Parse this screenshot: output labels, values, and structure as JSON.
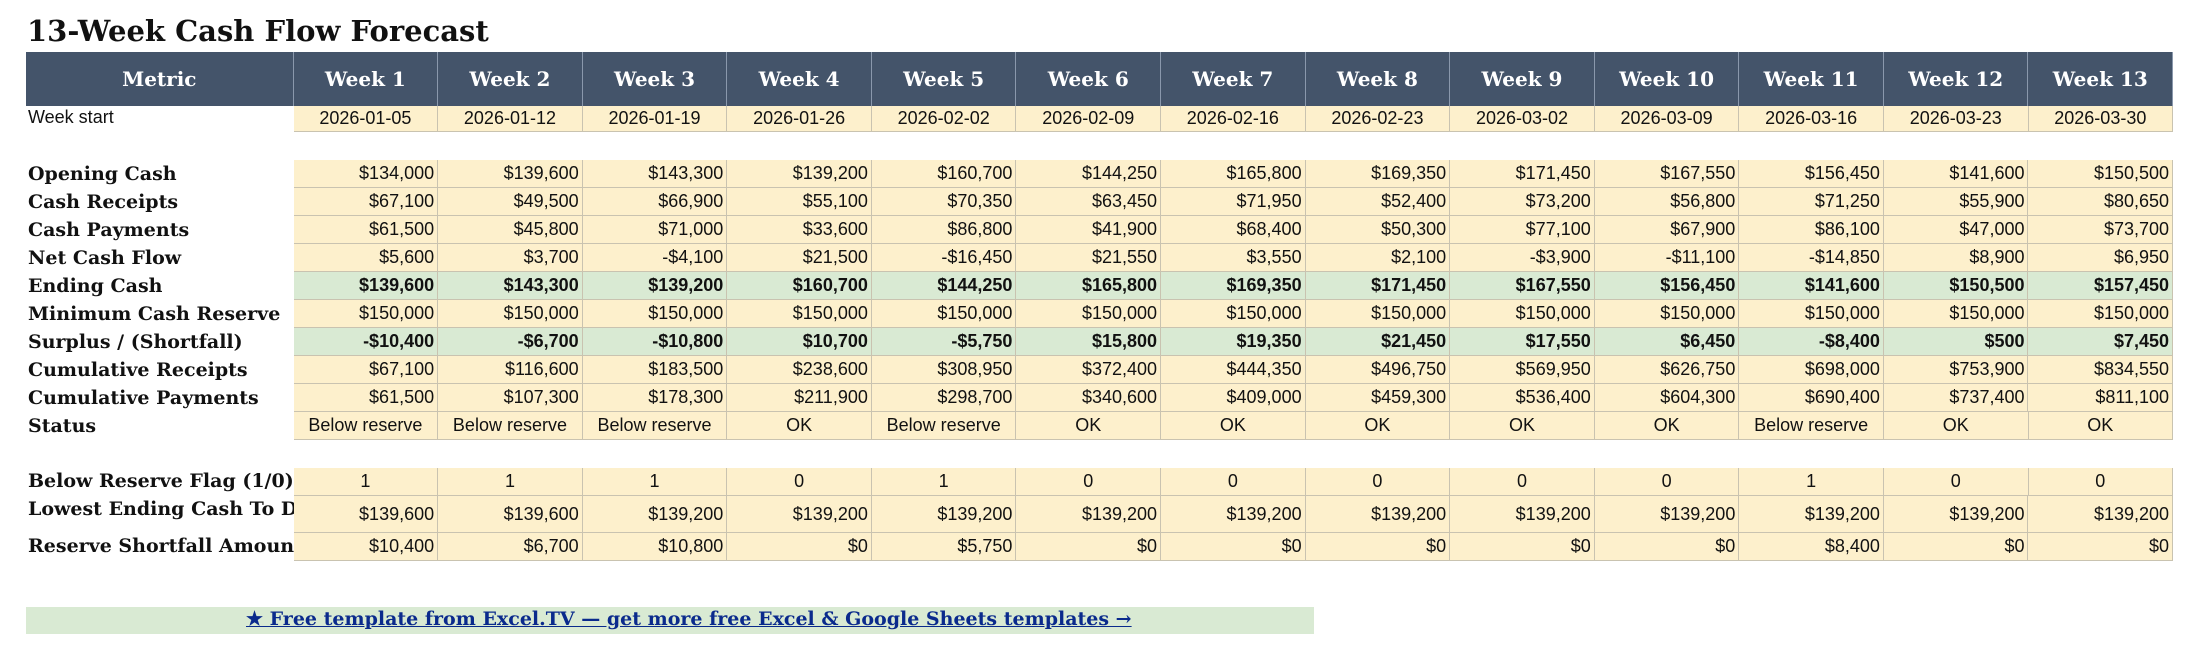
{
  "title": "13-Week Cash Flow Forecast",
  "header": {
    "metric": "Metric",
    "weeks": [
      "Week 1",
      "Week 2",
      "Week 3",
      "Week 4",
      "Week 5",
      "Week 6",
      "Week 7",
      "Week 8",
      "Week 9",
      "Week 10",
      "Week 11",
      "Week 12",
      "Week 13"
    ]
  },
  "week_start": {
    "label": "Week start",
    "values": [
      "2026-01-05",
      "2026-01-12",
      "2026-01-19",
      "2026-01-26",
      "2026-02-02",
      "2026-02-09",
      "2026-02-16",
      "2026-02-23",
      "2026-03-02",
      "2026-03-09",
      "2026-03-16",
      "2026-03-23",
      "2026-03-30"
    ]
  },
  "rows": [
    {
      "label": "Opening Cash",
      "style": "normal",
      "values": [
        "$134,000",
        "$139,600",
        "$143,300",
        "$139,200",
        "$160,700",
        "$144,250",
        "$165,800",
        "$169,350",
        "$171,450",
        "$167,550",
        "$156,450",
        "$141,600",
        "$150,500"
      ]
    },
    {
      "label": "Cash Receipts",
      "style": "normal",
      "values": [
        "$67,100",
        "$49,500",
        "$66,900",
        "$55,100",
        "$70,350",
        "$63,450",
        "$71,950",
        "$52,400",
        "$73,200",
        "$56,800",
        "$71,250",
        "$55,900",
        "$80,650"
      ]
    },
    {
      "label": "Cash Payments",
      "style": "normal",
      "values": [
        "$61,500",
        "$45,800",
        "$71,000",
        "$33,600",
        "$86,800",
        "$41,900",
        "$68,400",
        "$50,300",
        "$77,100",
        "$67,900",
        "$86,100",
        "$47,000",
        "$73,700"
      ]
    },
    {
      "label": "Net Cash Flow",
      "style": "normal",
      "values": [
        "$5,600",
        "$3,700",
        "-$4,100",
        "$21,500",
        "-$16,450",
        "$21,550",
        "$3,550",
        "$2,100",
        "-$3,900",
        "-$11,100",
        "-$14,850",
        "$8,900",
        "$6,950"
      ]
    },
    {
      "label": "Ending Cash",
      "style": "green",
      "values": [
        "$139,600",
        "$143,300",
        "$139,200",
        "$160,700",
        "$144,250",
        "$165,800",
        "$169,350",
        "$171,450",
        "$167,550",
        "$156,450",
        "$141,600",
        "$150,500",
        "$157,450"
      ]
    },
    {
      "label": "Minimum Cash Reserve",
      "style": "normal",
      "values": [
        "$150,000",
        "$150,000",
        "$150,000",
        "$150,000",
        "$150,000",
        "$150,000",
        "$150,000",
        "$150,000",
        "$150,000",
        "$150,000",
        "$150,000",
        "$150,000",
        "$150,000"
      ]
    },
    {
      "label": "Surplus / (Shortfall)",
      "style": "green",
      "values": [
        "-$10,400",
        "-$6,700",
        "-$10,800",
        "$10,700",
        "-$5,750",
        "$15,800",
        "$19,350",
        "$21,450",
        "$17,550",
        "$6,450",
        "-$8,400",
        "$500",
        "$7,450"
      ]
    },
    {
      "label": "Cumulative Receipts",
      "style": "normal",
      "values": [
        "$67,100",
        "$116,600",
        "$183,500",
        "$238,600",
        "$308,950",
        "$372,400",
        "$444,350",
        "$496,750",
        "$569,950",
        "$626,750",
        "$698,000",
        "$753,900",
        "$834,550"
      ]
    },
    {
      "label": "Cumulative Payments",
      "style": "normal",
      "values": [
        "$61,500",
        "$107,300",
        "$178,300",
        "$211,900",
        "$298,700",
        "$340,600",
        "$409,000",
        "$459,300",
        "$536,400",
        "$604,300",
        "$690,400",
        "$737,400",
        "$811,100"
      ]
    },
    {
      "label": "Status",
      "style": "center",
      "values": [
        "Below reserve",
        "Below reserve",
        "Below reserve",
        "OK",
        "Below reserve",
        "OK",
        "OK",
        "OK",
        "OK",
        "OK",
        "Below reserve",
        "OK",
        "OK"
      ]
    }
  ],
  "flags": [
    {
      "label": "Below Reserve Flag (1/0)",
      "values": [
        "1",
        "1",
        "1",
        "0",
        "1",
        "0",
        "0",
        "0",
        "0",
        "0",
        "1",
        "0",
        "0"
      ]
    },
    {
      "label": "Lowest Ending Cash To Date",
      "values": [
        "$139,600",
        "$139,600",
        "$139,200",
        "$139,200",
        "$139,200",
        "$139,200",
        "$139,200",
        "$139,200",
        "$139,200",
        "$139,200",
        "$139,200",
        "$139,200",
        "$139,200"
      ]
    },
    {
      "label": "Reserve Shortfall Amount",
      "values": [
        "$10,400",
        "$6,700",
        "$10,800",
        "$0",
        "$5,750",
        "$0",
        "$0",
        "$0",
        "$0",
        "$0",
        "$8,400",
        "$0",
        "$0"
      ]
    }
  ],
  "footer": {
    "link_text": "★ Free template from Excel.TV — get more free Excel & Google Sheets templates →"
  },
  "colors": {
    "header_bg": "#44546a",
    "cell_bg": "#fdf0cc",
    "highlight_bg": "#d9ead3",
    "link": "#0a2a8c"
  }
}
